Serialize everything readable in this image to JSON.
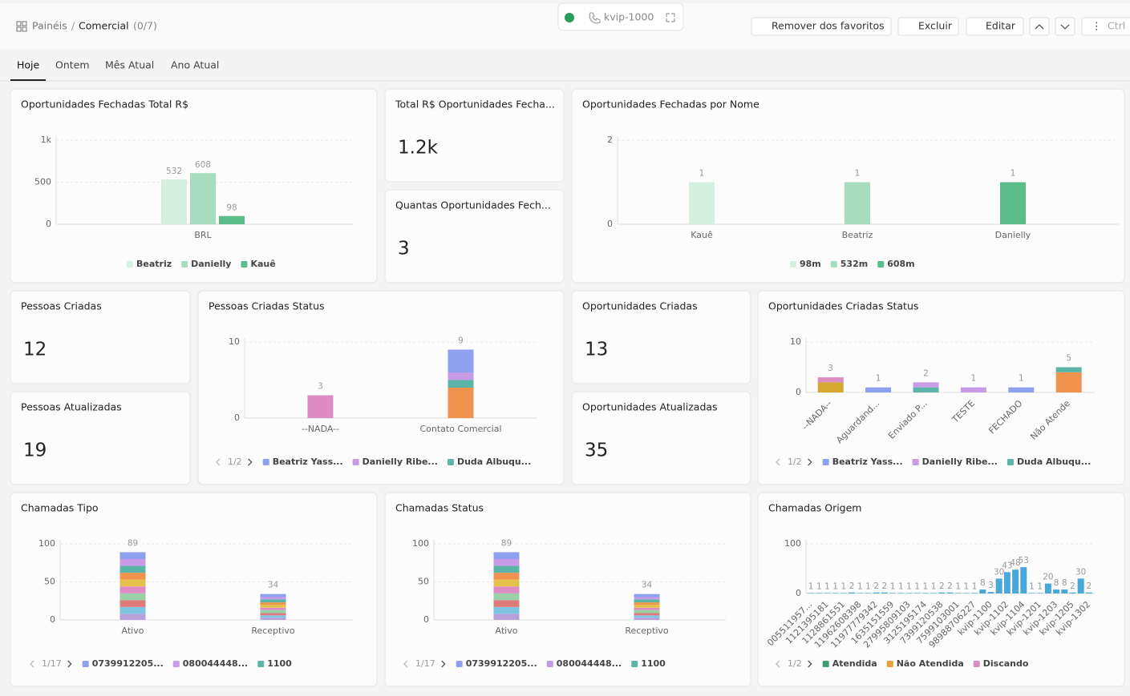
{
  "header": {
    "root": "Painéis",
    "separator": "/",
    "title": "Comercial",
    "count": "(0/7)",
    "extension": "kvip-1000",
    "buttons": [
      "Remover dos favoritos",
      "Excluir",
      "Editar",
      "Ctrl"
    ]
  },
  "tabs": [
    "Hoje",
    "Ontem",
    "Mês Atual",
    "Ano Atual"
  ],
  "widgets": [
    {
      "title": "Oportunidades Fechadas Total R$",
      "chart": {
        "type": "bar",
        "mode": "grouped",
        "categories": [
          "BRL"
        ],
        "series": [
          {
            "name": "Beatriz",
            "color": "#d5efe0",
            "values": [
              532
            ]
          },
          {
            "name": "Danielly",
            "color": "#a8dcbf",
            "values": [
              608
            ]
          },
          {
            "name": "Kauê",
            "color": "#5bbd8a",
            "values": [
              98
            ]
          }
        ],
        "ylim": [
          0,
          1000
        ],
        "yticks": [
          0,
          500,
          {
            "value": 1000,
            "label": "1k"
          }
        ],
        "grid": true
      }
    },
    {
      "title": "Total R$ Oportunidades Fecha...",
      "value": "1.2k"
    },
    {
      "title": "Quantas Oportunidades Fech...",
      "value": "3"
    },
    {
      "title": "Oportunidades Fechadas por Nome",
      "chart": {
        "type": "bar",
        "mode": "stacked",
        "categories": [
          "Kauê",
          "Beatriz",
          "Danielly"
        ],
        "series": [
          {
            "name": "98m",
            "color": "#d5efe0",
            "values": [
              1,
              null,
              null
            ]
          },
          {
            "name": "532m",
            "color": "#a8dcbf",
            "values": [
              null,
              1,
              null
            ]
          },
          {
            "name": "608m",
            "color": "#5bbd8a",
            "values": [
              null,
              null,
              1
            ]
          }
        ],
        "totals": [
          1,
          1,
          1
        ],
        "ylim": [
          0,
          2
        ],
        "yticks": [
          0,
          2
        ],
        "grid": true
      }
    },
    {
      "title": "Pessoas Criadas",
      "value": "12"
    },
    {
      "title": "Pessoas Atualizadas",
      "value": "19"
    },
    {
      "title": "Pessoas Criadas Status",
      "chart": {
        "type": "bar",
        "mode": "stacked",
        "categories": [
          "--NADA--",
          "Contato Comercial"
        ],
        "series": [
          {
            "name": "Beatriz Yass...",
            "color": "#8fa0ee",
            "values": [
              null,
              3
            ]
          },
          {
            "name": "Danielly Ribe...",
            "color": "#c89be6",
            "values": [
              null,
              1
            ]
          },
          {
            "name": "Duda Albuqu...",
            "color": "#5bb5a6",
            "values": [
              null,
              1
            ]
          },
          {
            "color": "#f0934e",
            "values": [
              null,
              4
            ]
          },
          {
            "color": "#dd8cc4",
            "values": [
              3,
              null
            ]
          }
        ],
        "totals": [
          3,
          9
        ],
        "ylim": [
          0,
          10
        ],
        "yticks": [
          0,
          10
        ],
        "grid": true,
        "legend_pager": "1/2"
      }
    },
    {
      "title": "Oportunidades Criadas",
      "value": "13"
    },
    {
      "title": "Oportunidades Atualizadas",
      "value": "35"
    },
    {
      "title": "Oportunidades Criadas Status",
      "chart": {
        "type": "bar",
        "mode": "stacked",
        "categories": [
          "--NADA--",
          "Aguardand...",
          "Enviado P...",
          "TESTE",
          "FECHADO",
          "Não Atende"
        ],
        "series": [
          {
            "name": "Beatriz Yass...",
            "color": "#8fa0ee",
            "values": [
              null,
              1,
              null,
              null,
              1,
              null
            ]
          },
          {
            "name": "Danielly Ribe...",
            "color": "#c89be6",
            "values": [
              null,
              null,
              1,
              1,
              null,
              null
            ]
          },
          {
            "name": "Duda Albuqu...",
            "color": "#5bb5a6",
            "values": [
              null,
              null,
              1,
              null,
              null,
              1
            ]
          },
          {
            "color": "#f0934e",
            "values": [
              null,
              null,
              null,
              null,
              null,
              4
            ]
          },
          {
            "color": "#dd8cc4",
            "values": [
              1,
              null,
              null,
              null,
              null,
              null
            ]
          },
          {
            "color": "#d4aa2e",
            "values": [
              2,
              null,
              null,
              null,
              null,
              null
            ]
          }
        ],
        "totals": [
          3,
          1,
          2,
          1,
          1,
          5
        ],
        "ylim": [
          0,
          10
        ],
        "yticks": [
          0,
          10
        ],
        "grid": true,
        "legend_pager": "1/2"
      }
    },
    {
      "title": "Chamadas Tipo",
      "chart": {
        "type": "bar",
        "mode": "stacked",
        "categories": [
          "Ativo",
          "Receptivo"
        ],
        "series": [
          {
            "name": "0739912205...",
            "color": "#8fa0ee",
            "values": [
              9,
              4
            ]
          },
          {
            "name": "080044448...",
            "color": "#c89be6",
            "values": [
              9,
              3
            ]
          },
          {
            "name": "1100",
            "color": "#5bb5a6",
            "values": [
              9,
              4
            ]
          },
          {
            "color": "#f0934e",
            "values": [
              9,
              3
            ]
          },
          {
            "color": "#e5c04a",
            "values": [
              9,
              4
            ]
          },
          {
            "color": "#dd8cc4",
            "values": [
              9,
              3
            ]
          },
          {
            "color": "#9ad0a8",
            "values": [
              9,
              4
            ]
          },
          {
            "color": "#e07a7a",
            "values": [
              9,
              3
            ]
          },
          {
            "color": "#7fc4e0",
            "values": [
              9,
              3
            ]
          },
          {
            "color": "#b8a0d8",
            "values": [
              8,
              3
            ]
          }
        ],
        "totals": [
          89,
          34
        ],
        "ylim": [
          0,
          100
        ],
        "yticks": [
          0,
          50,
          100
        ],
        "grid": true,
        "legend_pager": "1/17"
      }
    },
    {
      "title": "Chamadas Status",
      "chart": {
        "type": "bar",
        "mode": "stacked",
        "categories": [
          "Ativo",
          "Receptivo"
        ],
        "series": [
          {
            "name": "0739912205...",
            "color": "#8fa0ee",
            "values": [
              9,
              4
            ]
          },
          {
            "name": "080044448...",
            "color": "#c89be6",
            "values": [
              9,
              3
            ]
          },
          {
            "name": "1100",
            "color": "#5bb5a6",
            "values": [
              9,
              4
            ]
          },
          {
            "color": "#f0934e",
            "values": [
              9,
              3
            ]
          },
          {
            "color": "#e5c04a",
            "values": [
              9,
              4
            ]
          },
          {
            "color": "#dd8cc4",
            "values": [
              9,
              3
            ]
          },
          {
            "color": "#9ad0a8",
            "values": [
              9,
              4
            ]
          },
          {
            "color": "#e07a7a",
            "values": [
              9,
              3
            ]
          },
          {
            "color": "#7fc4e0",
            "values": [
              9,
              3
            ]
          },
          {
            "color": "#b8a0d8",
            "values": [
              8,
              3
            ]
          }
        ],
        "totals": [
          89,
          34
        ],
        "ylim": [
          0,
          100
        ],
        "yticks": [
          0,
          50,
          100
        ],
        "grid": true,
        "legend_pager": "1/17"
      }
    },
    {
      "title": "Chamadas Origem",
      "chart": {
        "type": "bar",
        "mode": "single",
        "categories": [
          "005511957...",
          null,
          "1121395181",
          null,
          "1128861551",
          null,
          "11962608398",
          null,
          "11977779342",
          null,
          "1635151559",
          null,
          "27995809103",
          null,
          "3125195174",
          null,
          "7399120538",
          null,
          "7599103001",
          null,
          "98988706227",
          null,
          "kvip-1100",
          null,
          "kvip-1102",
          null,
          "kvip-1104",
          null,
          "kvip-1201",
          null,
          "kvip-1203",
          null,
          "kvip-1205",
          null,
          "kvip-1302"
        ],
        "values": [
          1,
          1,
          1,
          1,
          1,
          2,
          1,
          1,
          2,
          2,
          1,
          1,
          1,
          1,
          1,
          1,
          2,
          2,
          1,
          1,
          1,
          8,
          3,
          30,
          43,
          48,
          53,
          1,
          1,
          20,
          8,
          8,
          2,
          30,
          2
        ],
        "color": "#4aa8d8",
        "ylim": [
          0,
          100
        ],
        "yticks": [
          0,
          100
        ],
        "grid": true,
        "legend_pager": "1/2",
        "legend": [
          {
            "name": "Atendida",
            "color": "#3f9e72"
          },
          {
            "name": "Não Atendida",
            "color": "#e8a23a"
          },
          {
            "name": "Discando",
            "color": "#dd8cc4"
          }
        ]
      }
    }
  ]
}
